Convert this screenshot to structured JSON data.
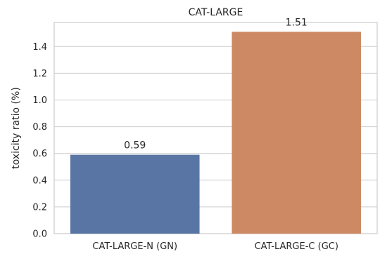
{
  "chart_data": {
    "type": "bar",
    "title": "CAT-LARGE",
    "xlabel": "",
    "ylabel": "toxicity ratio (%)",
    "categories": [
      "CAT-LARGE-N (GN)",
      "CAT-LARGE-C (GC)"
    ],
    "values": [
      0.59,
      1.51
    ],
    "data_labels": [
      "0.59",
      "1.51"
    ],
    "bar_colors": [
      "#5875a4",
      "#cc8963"
    ],
    "ylim": [
      0,
      1.58
    ],
    "yticks": [
      0.0,
      0.2,
      0.4,
      0.6,
      0.8,
      1.0,
      1.2,
      1.4
    ],
    "ytick_labels": [
      "0.0",
      "0.2",
      "0.4",
      "0.6",
      "0.8",
      "1.0",
      "1.2",
      "1.4"
    ],
    "grid": true,
    "grid_axis": "y"
  }
}
